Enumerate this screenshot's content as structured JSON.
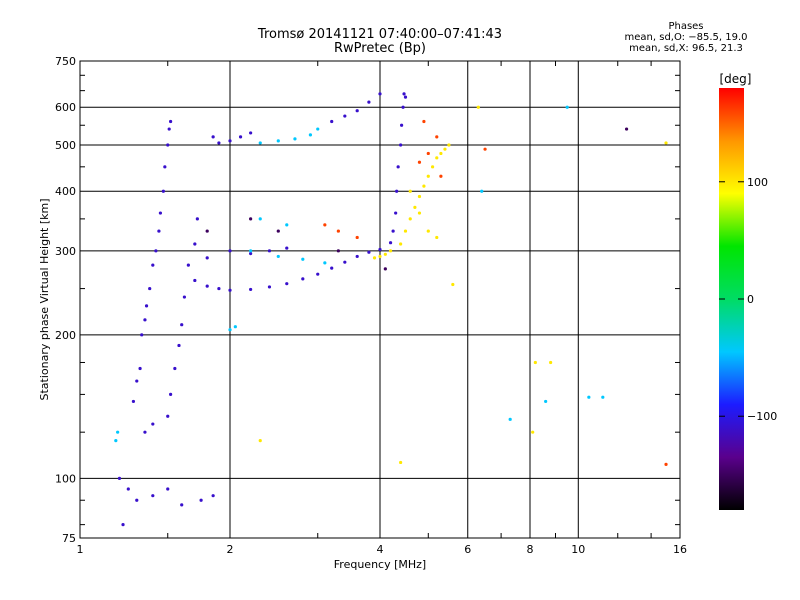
{
  "chart_data": {
    "type": "scatter",
    "title": "Tromsø 20141121 07:40:00–07:41:43",
    "subtitle": "RwPretec (Bp)",
    "xlabel": "Frequency [MHz]",
    "ylabel": "Stationary phase Virtual Height [km]",
    "x_scale": "log",
    "y_scale": "log",
    "xlim": [
      1,
      16
    ],
    "ylim": [
      75,
      750
    ],
    "x_ticks": [
      1,
      2,
      4,
      6,
      8,
      10,
      16
    ],
    "y_ticks": [
      75,
      100,
      200,
      300,
      400,
      500,
      600,
      750
    ],
    "x_gridlines": [
      2,
      4,
      6,
      8,
      10
    ],
    "y_gridlines": [
      100,
      200,
      300,
      400,
      500,
      600
    ],
    "grid": true,
    "stats": {
      "heading": "Phases",
      "o_mode": "mean, sd,O: −85.5, 19.0",
      "x_mode": "mean, sd,X:  96.5, 21.3"
    },
    "colorbar": {
      "label": "[deg]",
      "range": [
        -180,
        180
      ],
      "ticks": [
        100,
        0,
        -100
      ],
      "stops": [
        "#000000",
        "#5a008c",
        "#1c1cff",
        "#00c8ff",
        "#00dc64",
        "#00e600",
        "#ffff00",
        "#ff9600",
        "#ff0000"
      ]
    },
    "series": [
      {
        "color_phase": -110,
        "points": [
          [
            1.2,
            100
          ],
          [
            1.22,
            80
          ],
          [
            1.25,
            95
          ],
          [
            1.28,
            145
          ],
          [
            1.3,
            160
          ],
          [
            1.32,
            170
          ],
          [
            1.33,
            200
          ],
          [
            1.35,
            215
          ],
          [
            1.36,
            230
          ],
          [
            1.38,
            250
          ],
          [
            1.4,
            280
          ],
          [
            1.42,
            300
          ],
          [
            1.44,
            330
          ],
          [
            1.45,
            360
          ],
          [
            1.47,
            400
          ],
          [
            1.48,
            450
          ],
          [
            1.5,
            500
          ],
          [
            1.51,
            540
          ],
          [
            1.52,
            560
          ],
          [
            1.5,
            135
          ],
          [
            1.52,
            150
          ],
          [
            1.55,
            170
          ],
          [
            1.58,
            190
          ],
          [
            1.6,
            210
          ],
          [
            1.62,
            240
          ],
          [
            1.65,
            280
          ],
          [
            1.7,
            310
          ],
          [
            1.72,
            350
          ],
          [
            1.35,
            125
          ],
          [
            1.4,
            130
          ],
          [
            1.3,
            90
          ],
          [
            1.4,
            92
          ],
          [
            1.5,
            95
          ],
          [
            1.6,
            88
          ],
          [
            1.75,
            90
          ],
          [
            1.85,
            92
          ],
          [
            1.85,
            520
          ],
          [
            1.9,
            505
          ],
          [
            2.0,
            510
          ],
          [
            2.1,
            520
          ],
          [
            2.2,
            530
          ],
          [
            1.7,
            260
          ],
          [
            1.8,
            253
          ],
          [
            1.9,
            250
          ],
          [
            2.0,
            248
          ],
          [
            2.2,
            249
          ],
          [
            2.4,
            252
          ],
          [
            2.6,
            256
          ],
          [
            2.8,
            262
          ],
          [
            3.0,
            268
          ],
          [
            3.2,
            276
          ],
          [
            3.4,
            284
          ],
          [
            3.6,
            292
          ],
          [
            3.8,
            298
          ],
          [
            4.0,
            302
          ],
          [
            4.2,
            312
          ],
          [
            4.25,
            330
          ],
          [
            4.3,
            360
          ],
          [
            4.32,
            400
          ],
          [
            4.35,
            450
          ],
          [
            4.4,
            500
          ],
          [
            4.42,
            550
          ],
          [
            4.45,
            600
          ],
          [
            4.47,
            640
          ],
          [
            4.5,
            630
          ],
          [
            1.8,
            290
          ],
          [
            2.0,
            300
          ],
          [
            2.2,
            296
          ],
          [
            2.4,
            300
          ],
          [
            2.6,
            304
          ],
          [
            3.2,
            560
          ],
          [
            3.4,
            575
          ],
          [
            3.6,
            590
          ],
          [
            3.8,
            615
          ],
          [
            4.0,
            640
          ]
        ]
      },
      {
        "color_phase": -45,
        "points": [
          [
            1.18,
            120
          ],
          [
            1.19,
            125
          ],
          [
            2.0,
            205
          ],
          [
            2.05,
            208
          ],
          [
            2.3,
            505
          ],
          [
            2.5,
            510
          ],
          [
            2.7,
            515
          ],
          [
            2.9,
            525
          ],
          [
            3.0,
            540
          ],
          [
            2.2,
            300
          ],
          [
            2.5,
            292
          ],
          [
            2.8,
            288
          ],
          [
            3.1,
            283
          ],
          [
            2.3,
            350
          ],
          [
            2.6,
            340
          ],
          [
            7.3,
            133
          ],
          [
            8.6,
            145
          ],
          [
            9.5,
            600
          ],
          [
            10.5,
            148
          ],
          [
            11.2,
            148
          ],
          [
            6.4,
            400
          ]
        ]
      },
      {
        "color_phase": 100,
        "points": [
          [
            3.9,
            290
          ],
          [
            4.0,
            292
          ],
          [
            4.1,
            295
          ],
          [
            4.2,
            300
          ],
          [
            4.4,
            310
          ],
          [
            4.5,
            330
          ],
          [
            4.6,
            350
          ],
          [
            4.7,
            370
          ],
          [
            4.8,
            390
          ],
          [
            4.9,
            410
          ],
          [
            5.0,
            430
          ],
          [
            5.1,
            450
          ],
          [
            5.2,
            470
          ],
          [
            5.3,
            480
          ],
          [
            5.4,
            490
          ],
          [
            5.5,
            500
          ],
          [
            4.6,
            400
          ],
          [
            4.8,
            360
          ],
          [
            5.0,
            330
          ],
          [
            5.2,
            320
          ],
          [
            4.4,
            108
          ],
          [
            6.3,
            600
          ],
          [
            8.2,
            175
          ],
          [
            8.8,
            175
          ],
          [
            8.1,
            125
          ],
          [
            15.0,
            505
          ],
          [
            2.3,
            120
          ],
          [
            5.6,
            255
          ]
        ]
      },
      {
        "color_phase": 160,
        "points": [
          [
            3.1,
            340
          ],
          [
            3.3,
            330
          ],
          [
            4.8,
            460
          ],
          [
            5.0,
            480
          ],
          [
            5.2,
            520
          ],
          [
            5.3,
            430
          ],
          [
            6.5,
            490
          ],
          [
            15.0,
            107
          ],
          [
            3.6,
            320
          ],
          [
            4.9,
            560
          ]
        ]
      },
      {
        "color_phase": -150,
        "points": [
          [
            12.5,
            540
          ],
          [
            2.5,
            330
          ],
          [
            3.3,
            300
          ],
          [
            1.8,
            330
          ],
          [
            2.2,
            350
          ],
          [
            4.1,
            275
          ]
        ]
      }
    ]
  }
}
